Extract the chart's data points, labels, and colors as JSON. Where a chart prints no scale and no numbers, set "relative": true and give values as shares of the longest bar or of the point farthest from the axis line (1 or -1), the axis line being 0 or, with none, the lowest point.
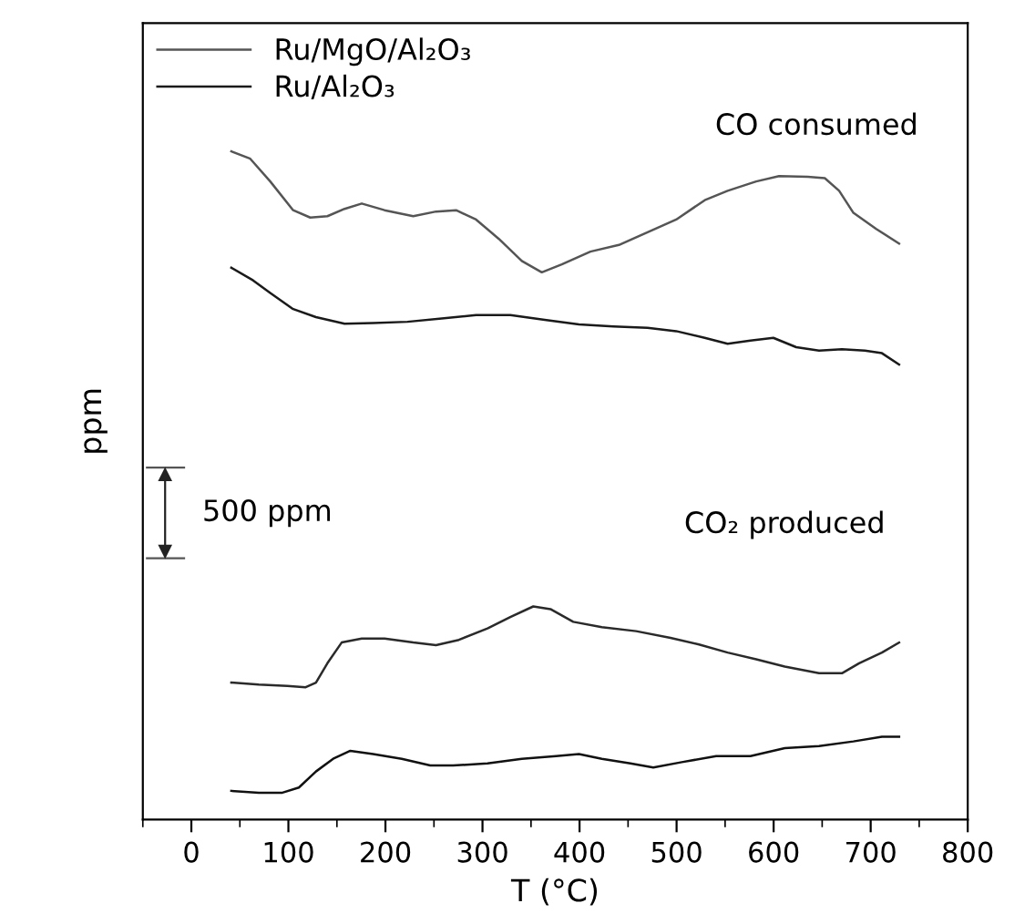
{
  "chart_data": {
    "type": "line",
    "relative": true,
    "xlabel": "T (°C)",
    "ylabel": "ppm",
    "xlim": [
      -50,
      800
    ],
    "xticks": [
      0,
      100,
      200,
      300,
      400,
      500,
      600,
      700,
      800
    ],
    "tick_labels": "x",
    "grid": false,
    "legend": "top left",
    "line_style": "solid",
    "marker": "none",
    "annotations": [
      "CO consumed",
      "CO₂ produced",
      "500 ppm"
    ],
    "series": [
      {
        "name": "Ru/MgO/Al₂O₃",
        "color": "#555555",
        "x": [
          41.2,
          60.7,
          81.3,
          104.9,
          122.5,
          140.2,
          157.9,
          175.6,
          199.1,
          228.6,
          252.1,
          272.8,
          293.4,
          316.9,
          340.5,
          361.1,
          381.7,
          411.2,
          440.6,
          470.1,
          499.6,
          529.0,
          552.6,
          582.0,
          605.6,
          635.1,
          652.7,
          667.5,
          682.2,
          705.7,
          729.3
        ],
        "values": [
          1.0,
          0.989,
          0.955,
          0.912,
          0.901,
          0.903,
          0.914,
          0.922,
          0.912,
          0.903,
          0.91,
          0.912,
          0.898,
          0.869,
          0.836,
          0.819,
          0.831,
          0.85,
          0.86,
          0.879,
          0.898,
          0.927,
          0.941,
          0.955,
          0.963,
          0.962,
          0.96,
          0.941,
          0.908,
          0.884,
          0.862
        ]
      },
      {
        "name": "Ru/Al₂O₃",
        "color": "#1a1a1a",
        "x": [
          41.2,
          63.6,
          81.3,
          104.9,
          128.4,
          157.9,
          187.3,
          222.7,
          258.0,
          293.4,
          328.7,
          364.1,
          399.4,
          434.8,
          470.1,
          499.6,
          529.0,
          552.6,
          576.1,
          599.7,
          623.3,
          646.8,
          670.4,
          694.0,
          711.6,
          729.3
        ],
        "values": [
          0.826,
          0.807,
          0.788,
          0.764,
          0.752,
          0.742,
          0.743,
          0.745,
          0.75,
          0.755,
          0.755,
          0.748,
          0.741,
          0.738,
          0.736,
          0.731,
          0.721,
          0.712,
          0.717,
          0.721,
          0.707,
          0.702,
          0.704,
          0.702,
          0.698,
          0.681
        ]
      },
      {
        "color": "#2a2a2a",
        "x": [
          41.2,
          69.5,
          99.0,
          117.8,
          128.4,
          140.2,
          154.9,
          175.6,
          199.1,
          228.6,
          252.1,
          275.7,
          305.2,
          328.7,
          352.3,
          370.0,
          393.5,
          423.0,
          458.3,
          493.7,
          523.1,
          552.6,
          582.0,
          611.5,
          646.8,
          670.4,
          688.1,
          711.6,
          729.3
        ],
        "values": [
          0.205,
          0.202,
          0.2,
          0.198,
          0.205,
          0.234,
          0.265,
          0.271,
          0.271,
          0.265,
          0.261,
          0.269,
          0.286,
          0.303,
          0.319,
          0.315,
          0.296,
          0.288,
          0.282,
          0.272,
          0.262,
          0.25,
          0.24,
          0.229,
          0.219,
          0.219,
          0.234,
          0.25,
          0.265
        ]
      },
      {
        "color": "#111111",
        "x": [
          41.2,
          69.5,
          93.1,
          110.8,
          128.4,
          146.1,
          163.8,
          187.3,
          216.8,
          246.2,
          269.8,
          305.2,
          340.5,
          375.8,
          399.4,
          423.0,
          452.4,
          476.0,
          505.4,
          540.8,
          576.1,
          611.5,
          646.8,
          682.2,
          711.6,
          729.3
        ],
        "values": [
          0.043,
          0.04,
          0.04,
          0.048,
          0.072,
          0.091,
          0.103,
          0.098,
          0.091,
          0.081,
          0.081,
          0.084,
          0.091,
          0.095,
          0.098,
          0.091,
          0.084,
          0.078,
          0.086,
          0.095,
          0.095,
          0.107,
          0.11,
          0.117,
          0.124,
          0.124
        ]
      }
    ]
  }
}
